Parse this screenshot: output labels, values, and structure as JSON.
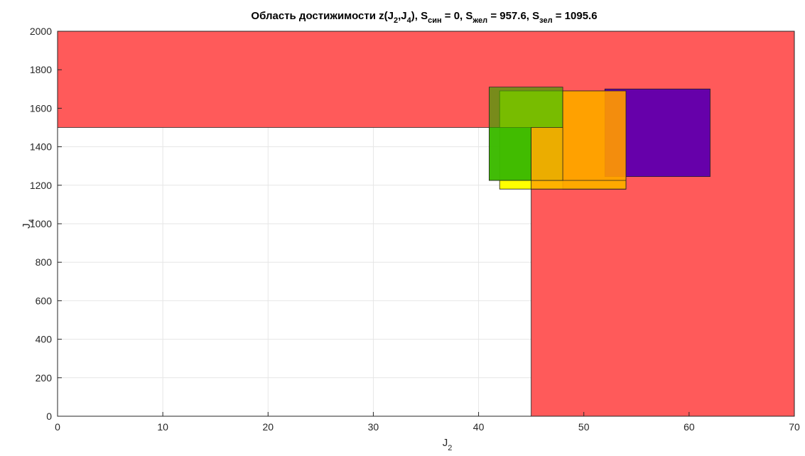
{
  "chart_data": {
    "type": "area",
    "title": {
      "parts": [
        {
          "t": "Область достижимости z(J"
        },
        {
          "t": "2",
          "sub": true
        },
        {
          "t": ",J"
        },
        {
          "t": "4",
          "sub": true
        },
        {
          "t": "), S"
        },
        {
          "t": "син",
          "sub": true
        },
        {
          "t": " = 0, S"
        },
        {
          "t": "жел",
          "sub": true
        },
        {
          "t": " = 957.6, S"
        },
        {
          "t": "зел",
          "sub": true
        },
        {
          "t": " = 1095.6"
        }
      ]
    },
    "xlabel": {
      "base": "J",
      "sub": "2"
    },
    "ylabel": {
      "base": "J",
      "sub": "4"
    },
    "xlim": [
      0,
      70
    ],
    "ylim": [
      0,
      2000
    ],
    "xticks": [
      0,
      10,
      20,
      30,
      40,
      50,
      60,
      70
    ],
    "yticks": [
      0,
      200,
      400,
      600,
      800,
      1000,
      1200,
      1400,
      1600,
      1800,
      2000
    ],
    "grid": true,
    "regions": [
      {
        "name": "red-region",
        "color": "#ff5a5a",
        "opacity": 1.0,
        "polygon": [
          [
            0,
            2000
          ],
          [
            70,
            2000
          ],
          [
            70,
            0
          ],
          [
            45,
            0
          ],
          [
            45,
            1500
          ],
          [
            0,
            1500
          ]
        ]
      },
      {
        "name": "yellow-rect",
        "color": "#ffff00",
        "opacity": 1.0,
        "polygon": [
          [
            42,
            1180
          ],
          [
            54,
            1180
          ],
          [
            54,
            1690
          ],
          [
            42,
            1690
          ]
        ]
      },
      {
        "name": "bright-green-rect",
        "color": "#33ff00",
        "opacity": 0.9,
        "polygon": [
          [
            41,
            1225
          ],
          [
            45,
            1225
          ],
          [
            45,
            1500
          ],
          [
            41,
            1500
          ]
        ]
      },
      {
        "name": "olive-green-rect",
        "color": "#3f9f00",
        "opacity": 0.7,
        "polygon": [
          [
            41,
            1225
          ],
          [
            48,
            1225
          ],
          [
            48,
            1710
          ],
          [
            41,
            1710
          ]
        ]
      },
      {
        "name": "purple-rect",
        "color": "#6600aa",
        "opacity": 1.0,
        "polygon": [
          [
            52,
            1245
          ],
          [
            62,
            1245
          ],
          [
            62,
            1700
          ],
          [
            52,
            1700
          ]
        ]
      },
      {
        "name": "orange-overlay-rect",
        "color": "#ff9900",
        "opacity": 0.92,
        "polygon": [
          [
            48,
            1180
          ],
          [
            54,
            1180
          ],
          [
            54,
            1690
          ],
          [
            48,
            1690
          ]
        ]
      },
      {
        "name": "orange-lower-strip",
        "color": "#ffaa00",
        "opacity": 0.9,
        "polygon": [
          [
            45,
            1180
          ],
          [
            54,
            1180
          ],
          [
            54,
            1225
          ],
          [
            45,
            1225
          ]
        ]
      },
      {
        "name": "orange-inner-strip",
        "color": "#ffaa00",
        "opacity": 0.85,
        "polygon": [
          [
            45,
            1225
          ],
          [
            48,
            1225
          ],
          [
            48,
            1500
          ],
          [
            45,
            1500
          ]
        ]
      }
    ]
  }
}
